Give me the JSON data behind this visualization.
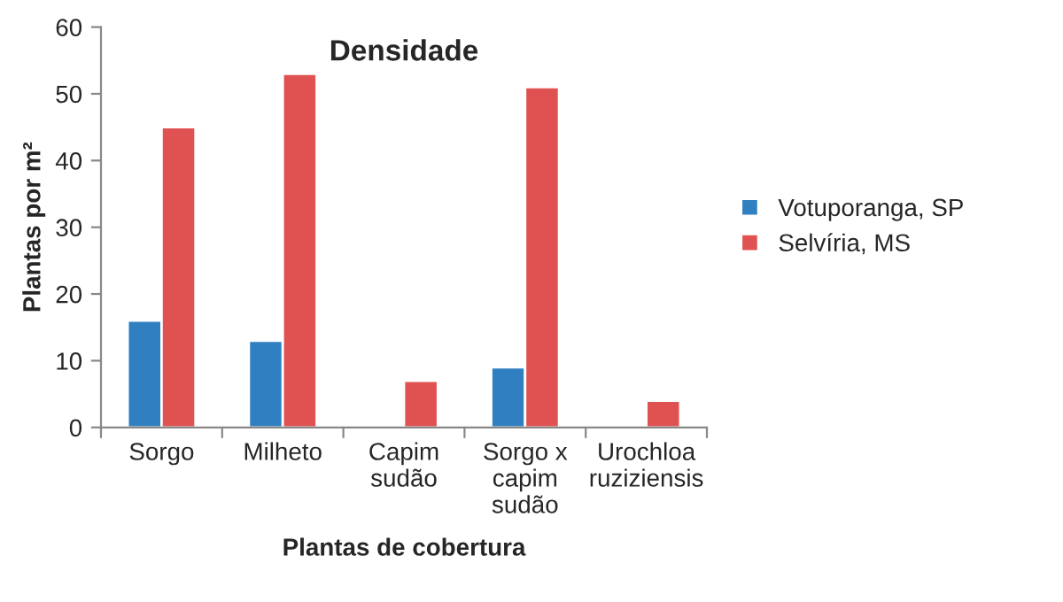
{
  "chart_data": {
    "type": "bar",
    "title": "Densidade",
    "xlabel": "Plantas de cobertura",
    "ylabel": "Plantas por m²",
    "categories": [
      "Sorgo",
      "Milheto",
      "Capim\nsudão",
      "Sorgo x\ncapim\nsudão",
      "Urochloa\nruziziensis"
    ],
    "series": [
      {
        "name": "Votuporanga, SP",
        "color": "#2f7fc1",
        "values": [
          16,
          13,
          null,
          9,
          null
        ]
      },
      {
        "name": "Selvíria, MS",
        "color": "#e05252",
        "values": [
          45,
          53,
          7,
          51,
          4
        ]
      }
    ],
    "ylim": [
      0,
      60
    ],
    "yticks": [
      0,
      10,
      20,
      30,
      40,
      50,
      60
    ],
    "grid": false,
    "legend": "right"
  }
}
